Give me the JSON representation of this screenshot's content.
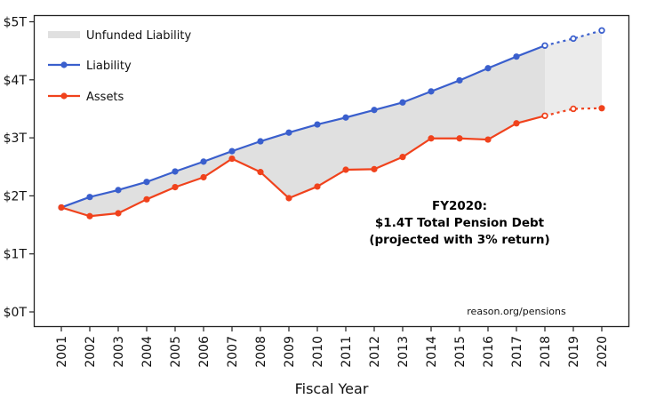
{
  "chart_data": {
    "type": "line",
    "title": "",
    "xlabel": "Fiscal Year",
    "ylabel": "",
    "categories": [
      "2001",
      "2002",
      "2003",
      "2004",
      "2005",
      "2006",
      "2007",
      "2008",
      "2009",
      "2010",
      "2011",
      "2012",
      "2013",
      "2014",
      "2015",
      "2016",
      "2017",
      "2018",
      "2019",
      "2020"
    ],
    "ylim": [
      0,
      5
    ],
    "y_ticks": [
      0,
      1,
      2,
      3,
      4,
      5
    ],
    "y_tick_labels": [
      "$0T",
      "$1T",
      "$2T",
      "$3T",
      "$4T",
      "$5T"
    ],
    "grid": false,
    "legend_position": "top-left",
    "projected_from": "2018",
    "series": [
      {
        "name": "Liability",
        "color": "#3a5fcd",
        "values": [
          1.8,
          1.98,
          2.1,
          2.24,
          2.42,
          2.59,
          2.77,
          2.94,
          3.09,
          3.23,
          3.35,
          3.48,
          3.61,
          3.8,
          3.99,
          4.2,
          4.4,
          4.59,
          4.71,
          4.85
        ]
      },
      {
        "name": "Assets",
        "color": "#f0421c",
        "values": [
          1.8,
          1.65,
          1.7,
          1.94,
          2.15,
          2.32,
          2.64,
          2.41,
          1.96,
          2.16,
          2.45,
          2.46,
          2.67,
          2.99,
          2.99,
          2.97,
          3.25,
          3.38,
          3.5,
          3.51
        ]
      }
    ],
    "area": {
      "name": "Unfunded Liability",
      "color": "#e0e0e0",
      "projected_color": "#ebebeb",
      "between": [
        "Liability",
        "Assets"
      ]
    },
    "legend": [
      {
        "label": "Unfunded Liability",
        "kind": "area"
      },
      {
        "label": "Liability",
        "kind": "line"
      },
      {
        "label": "Assets",
        "kind": "line"
      }
    ],
    "annotations": {
      "headline": [
        "FY2020:",
        "$1.4T Total Pension Debt",
        "(projected with 3% return)"
      ],
      "source": "reason.org/pensions"
    }
  }
}
